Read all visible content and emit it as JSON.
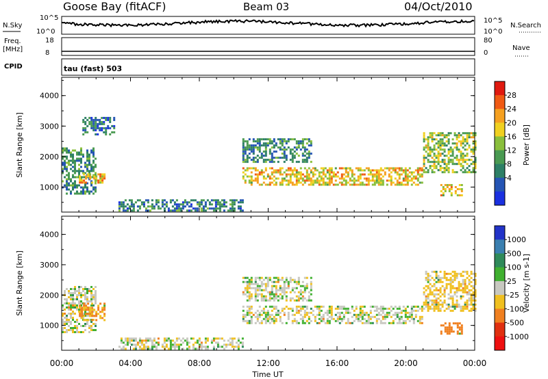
{
  "header": {
    "station": "Goose Bay (fitACF)",
    "beam": "Beam 03",
    "date": "04/Oct/2010"
  },
  "top_panels": {
    "nsky_label": "N.Sky",
    "nsearch_label": "N.Search",
    "noise_ticks_left": [
      "10^5",
      "10^0"
    ],
    "noise_ticks_right": [
      "10^5",
      "10^0"
    ],
    "freq_label": "Freq.",
    "freq_unit": "[MHz]",
    "freq_ticks": [
      "18",
      "8"
    ],
    "nave_label": "Nave",
    "nave_ticks": [
      "80",
      "0"
    ],
    "cpid_label": "CPID",
    "cpid_text": "tau (fast) 503"
  },
  "chart_data": [
    {
      "type": "heatmap",
      "name": "power",
      "ylabel": "Slant Range [km]",
      "xlim": [
        "00:00",
        "24:00"
      ],
      "ylim": [
        180,
        4600
      ],
      "y_ticks": [
        "1000",
        "2000",
        "3000",
        "4000"
      ],
      "colorbar": {
        "label": "Power [dB]",
        "ticks": [
          "28",
          "24",
          "20",
          "16",
          "12",
          "8",
          "4"
        ],
        "colors": [
          "#1a30e0",
          "#2555b4",
          "#2d7f66",
          "#4a9a52",
          "#8abf3c",
          "#f0d020",
          "#f5a020",
          "#f05a14",
          "#e01a10"
        ]
      },
      "regions": [
        {
          "t": [
            0.0,
            2.0
          ],
          "range_km": [
            800,
            2300
          ],
          "power_db": 10
        },
        {
          "t": [
            1.2,
            3.0
          ],
          "range_km": [
            2700,
            3300
          ],
          "power_db": 8
        },
        {
          "t": [
            1.0,
            2.5
          ],
          "range_km": [
            1150,
            1450
          ],
          "power_db": 22
        },
        {
          "t": [
            3.3,
            10.5
          ],
          "range_km": [
            250,
            600
          ],
          "power_db": 9
        },
        {
          "t": [
            10.5,
            21.0
          ],
          "range_km": [
            1100,
            1650
          ],
          "power_db": 20
        },
        {
          "t": [
            10.5,
            14.5
          ],
          "range_km": [
            1800,
            2600
          ],
          "power_db": 10
        },
        {
          "t": [
            21.0,
            24.0
          ],
          "range_km": [
            1500,
            2800
          ],
          "power_db": 16
        },
        {
          "t": [
            22.0,
            23.3
          ],
          "range_km": [
            700,
            1100
          ],
          "power_db": 20
        }
      ]
    },
    {
      "type": "heatmap",
      "name": "velocity",
      "ylabel": "Slant Range [km]",
      "xlabel": "Time UT",
      "xlim": [
        "00:00",
        "24:00"
      ],
      "ylim": [
        180,
        4600
      ],
      "y_ticks": [
        "1000",
        "2000",
        "3000",
        "4000"
      ],
      "x_ticks": [
        "00:00",
        "04:00",
        "08:00",
        "12:00",
        "16:00",
        "20:00",
        "00:00"
      ],
      "colorbar": {
        "label": "Velocity [m s-1]",
        "ticks": [
          "1000",
          "500",
          "100",
          "25",
          "-25",
          "-100",
          "-500",
          "-1000"
        ],
        "colors": [
          "#2233c8",
          "#3a7fb0",
          "#2f8a5a",
          "#40b030",
          "#c8c8c0",
          "#f0c020",
          "#f08020",
          "#e03010",
          "#ee1010"
        ]
      },
      "regions": [
        {
          "t": [
            0.0,
            2.0
          ],
          "range_km": [
            800,
            2300
          ],
          "velocity_ms": 0
        },
        {
          "t": [
            1.0,
            2.5
          ],
          "range_km": [
            1150,
            1750
          ],
          "velocity_ms": -100
        },
        {
          "t": [
            3.3,
            10.5
          ],
          "range_km": [
            250,
            600
          ],
          "velocity_ms": 0
        },
        {
          "t": [
            10.5,
            21.0
          ],
          "range_km": [
            1100,
            1650
          ],
          "velocity_ms": 0
        },
        {
          "t": [
            10.5,
            14.5
          ],
          "range_km": [
            1800,
            2600
          ],
          "velocity_ms": 0
        },
        {
          "t": [
            21.0,
            24.0
          ],
          "range_km": [
            1500,
            2800
          ],
          "velocity_ms": -50
        },
        {
          "t": [
            22.0,
            23.3
          ],
          "range_km": [
            700,
            1100
          ],
          "velocity_ms": -200
        }
      ]
    }
  ]
}
